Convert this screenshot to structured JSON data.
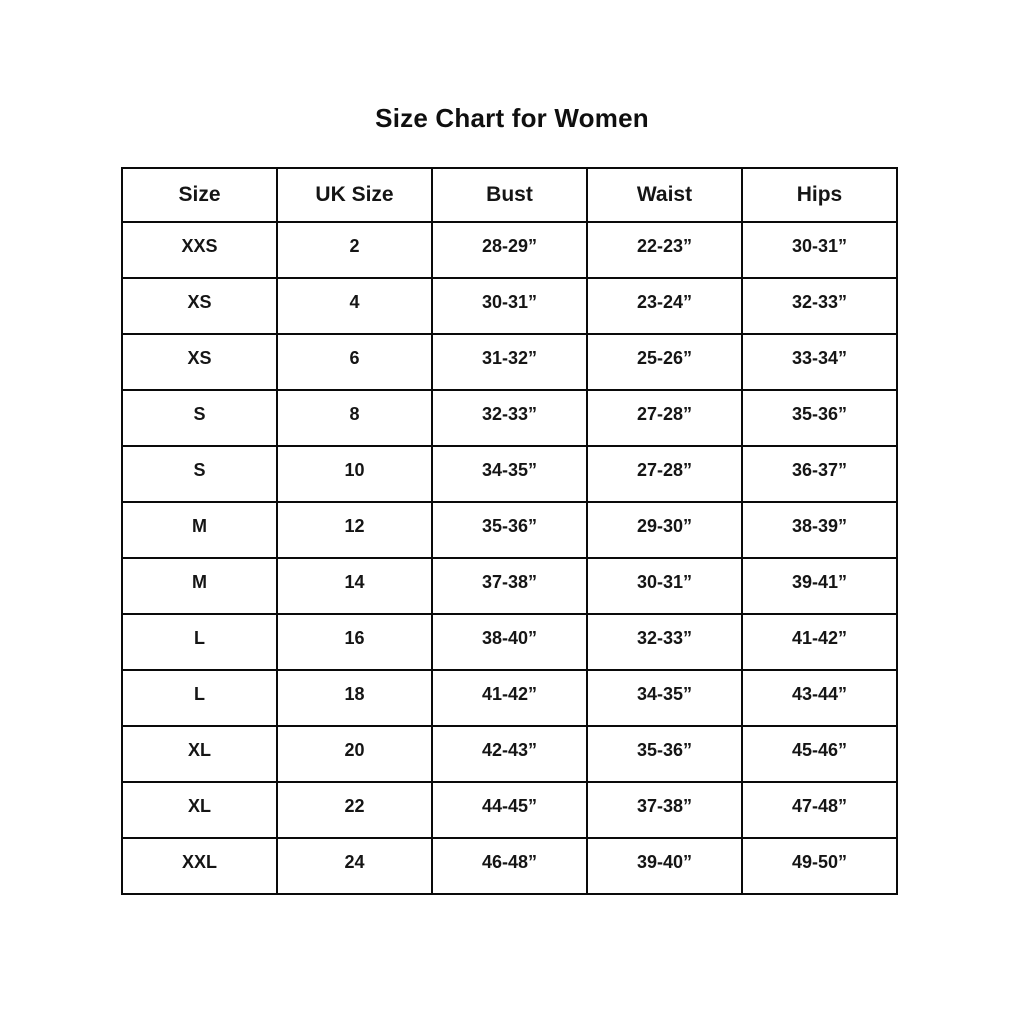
{
  "title": "Size Chart for Women",
  "chart_data": {
    "type": "table",
    "title": "Size Chart for Women",
    "columns": [
      "Size",
      "UK Size",
      "Bust",
      "Waist",
      "Hips"
    ],
    "rows": [
      [
        "XXS",
        "2",
        "28-29”",
        "22-23”",
        "30-31”"
      ],
      [
        "XS",
        "4",
        "30-31”",
        "23-24”",
        "32-33”"
      ],
      [
        "XS",
        "6",
        "31-32”",
        "25-26”",
        "33-34”"
      ],
      [
        "S",
        "8",
        "32-33”",
        "27-28”",
        "35-36”"
      ],
      [
        "S",
        "10",
        "34-35”",
        "27-28”",
        "36-37”"
      ],
      [
        "M",
        "12",
        "35-36”",
        "29-30”",
        "38-39”"
      ],
      [
        "M",
        "14",
        "37-38”",
        "30-31”",
        "39-41”"
      ],
      [
        "L",
        "16",
        "38-40”",
        "32-33”",
        "41-42”"
      ],
      [
        "L",
        "18",
        "41-42”",
        "34-35”",
        "43-44”"
      ],
      [
        "XL",
        "20",
        "42-43”",
        "35-36”",
        "45-46”"
      ],
      [
        "XL",
        "22",
        "44-45”",
        "37-38”",
        "47-48”"
      ],
      [
        "XXL",
        "24",
        "46-48”",
        "39-40”",
        "49-50”"
      ]
    ],
    "layout": {
      "grid": "on",
      "border_color": "#0a0a0a",
      "text_color": "#151515",
      "background": "#ffffff"
    }
  }
}
